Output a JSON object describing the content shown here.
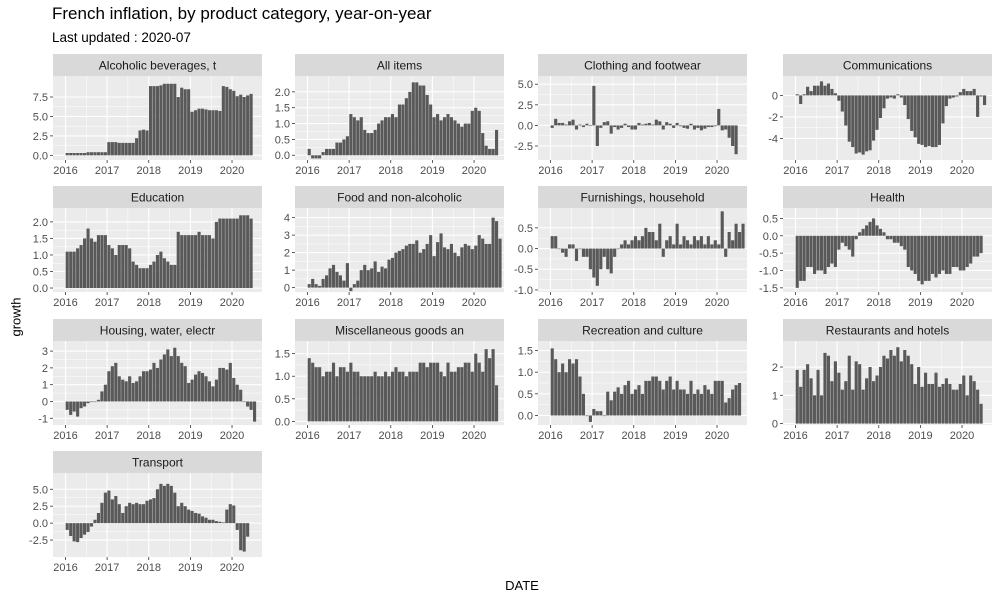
{
  "chart_data": {
    "type": "bar",
    "title": "French inflation, by product category, year-on-year",
    "subtitle": "Last updated : 2020-07",
    "xlabel": "DATE",
    "ylabel": "growth",
    "x_start": "2016-01",
    "x_end": "2020-06",
    "x_range": [
      2015.7,
      2020.72
    ],
    "x_ticks": [
      2016,
      2017,
      2018,
      2019,
      2020
    ],
    "x_tick_labels": [
      "2016",
      "2017",
      "2018",
      "2019",
      "2020"
    ],
    "colors": {
      "bar": "#595959",
      "panel": "#ebebeb",
      "strip": "#d9d9d9",
      "grid": "#ffffff",
      "axis_text": "#4d4d4d"
    },
    "facets": [
      {
        "label": "Alcoholic beverages, t",
        "ylim": [
          -0.6,
          10.2
        ],
        "y_ticks": [
          0.0,
          2.5,
          5.0,
          7.5
        ],
        "y_tick_labels": [
          "0.0",
          "2.5",
          "5.0",
          "7.5"
        ],
        "values": [
          0.3,
          0.3,
          0.3,
          0.3,
          0.3,
          0.3,
          0.4,
          0.4,
          0.4,
          0.4,
          0.4,
          0.4,
          1.7,
          1.7,
          1.7,
          1.6,
          1.6,
          1.6,
          1.6,
          1.6,
          2.2,
          3.2,
          3.3,
          3.2,
          8.9,
          8.9,
          8.9,
          9.0,
          9.2,
          9.2,
          9.2,
          9.2,
          7.5,
          8.7,
          8.5,
          8.5,
          5.6,
          5.8,
          6.0,
          6.0,
          5.9,
          5.8,
          5.8,
          5.8,
          5.7,
          8.9,
          8.8,
          8.5,
          8.3,
          7.6,
          7.8,
          7.5,
          7.7,
          7.9
        ]
      },
      {
        "label": "All items",
        "ylim": [
          -0.15,
          2.5
        ],
        "y_ticks": [
          0.0,
          0.5,
          1.0,
          1.5,
          2.0
        ],
        "y_tick_labels": [
          "0.0",
          "0.5",
          "1.0",
          "1.5",
          "2.0"
        ],
        "values": [
          0.2,
          -0.1,
          -0.1,
          -0.1,
          0.1,
          0.2,
          0.2,
          0.2,
          0.4,
          0.4,
          0.5,
          0.6,
          1.3,
          1.2,
          1.1,
          1.2,
          0.8,
          0.7,
          0.7,
          0.8,
          1.0,
          1.1,
          1.2,
          1.2,
          1.3,
          1.2,
          1.6,
          1.6,
          1.8,
          2.0,
          2.3,
          2.3,
          2.2,
          2.2,
          1.9,
          1.6,
          1.2,
          1.3,
          1.1,
          1.2,
          1.3,
          1.2,
          1.1,
          1.0,
          0.9,
          1.0,
          1.0,
          1.4,
          1.5,
          1.4,
          0.7,
          0.3,
          0.2,
          0.2,
          0.8
        ]
      },
      {
        "label": "Clothing and footwear",
        "ylim": [
          -4.2,
          6.0
        ],
        "y_ticks": [
          -2.5,
          0.0,
          2.5,
          5.0
        ],
        "y_tick_labels": [
          "-2.5",
          "0.0",
          "2.5",
          "5.0"
        ],
        "values": [
          -0.3,
          0.8,
          0.3,
          0.3,
          0.1,
          0.5,
          0.7,
          -0.5,
          0.1,
          -0.2,
          0.2,
          0.0,
          4.8,
          -2.5,
          -0.3,
          0.4,
          0.5,
          -1.0,
          -0.2,
          -0.5,
          -0.3,
          0.2,
          -0.2,
          -0.5,
          -0.5,
          0.3,
          0.1,
          0.2,
          0.3,
          0.1,
          0.7,
          0.5,
          -0.5,
          0.4,
          0.2,
          -0.3,
          0.3,
          -0.1,
          -0.3,
          -0.4,
          0.2,
          -0.5,
          -0.3,
          -0.6,
          -0.4,
          -0.2,
          -0.2,
          -0.1,
          2.0,
          -0.6,
          -0.5,
          -1.5,
          -2.5,
          -3.5
        ]
      },
      {
        "label": "Communications",
        "ylim": [
          -6.0,
          1.8
        ],
        "y_ticks": [
          -4,
          -2,
          0
        ],
        "y_tick_labels": [
          "-4",
          "-2",
          "0"
        ],
        "values": [
          0.1,
          -0.8,
          0.1,
          0.8,
          0.4,
          0.9,
          0.9,
          1.3,
          0.9,
          1.1,
          0.6,
          0.2,
          -0.5,
          -1.5,
          -2.8,
          -4.3,
          -4.8,
          -5.4,
          -5.3,
          -5.5,
          -5.2,
          -5.1,
          -4.2,
          -3.2,
          -2.1,
          -1.2,
          -0.3,
          -0.2,
          -0.3,
          0.1,
          -0.2,
          -0.9,
          -2.2,
          -3.3,
          -3.9,
          -4.5,
          -4.6,
          -4.8,
          -4.7,
          -4.8,
          -4.8,
          -4.6,
          -2.6,
          -1.0,
          -0.3,
          -0.2,
          -0.1,
          0.3,
          0.6,
          0.4,
          0.4,
          0.6,
          -2.0,
          -0.1,
          -0.9
        ]
      },
      {
        "label": "Education",
        "ylim": [
          -0.12,
          2.42
        ],
        "y_ticks": [
          0.0,
          0.5,
          1.0,
          1.5,
          2.0
        ],
        "y_tick_labels": [
          "0.0",
          "0.5",
          "1.0",
          "1.5",
          "2.0"
        ],
        "values": [
          1.1,
          1.1,
          1.1,
          1.2,
          1.3,
          1.5,
          1.8,
          1.5,
          1.4,
          1.6,
          1.6,
          1.6,
          1.3,
          1.2,
          1.0,
          1.3,
          1.3,
          1.3,
          1.2,
          0.8,
          0.7,
          0.6,
          0.6,
          0.6,
          0.7,
          0.8,
          1.0,
          1.1,
          0.9,
          0.8,
          0.7,
          0.7,
          1.7,
          1.6,
          1.6,
          1.6,
          1.6,
          1.6,
          1.7,
          1.6,
          1.6,
          1.6,
          1.5,
          2.0,
          2.1,
          2.1,
          2.1,
          2.1,
          2.1,
          2.1,
          2.2,
          2.2,
          2.2,
          2.1
        ]
      },
      {
        "label": "Food and non-alcoholic",
        "ylim": [
          -0.25,
          4.55
        ],
        "y_ticks": [
          0,
          1,
          2,
          3,
          4
        ],
        "y_tick_labels": [
          "0",
          "1",
          "2",
          "3",
          "4"
        ],
        "values": [
          0.2,
          0.5,
          0.2,
          0.1,
          0.5,
          0.7,
          1.1,
          1.3,
          0.9,
          0.7,
          0.4,
          1.4,
          -0.2,
          0.2,
          0.4,
          1.0,
          1.3,
          1.0,
          1.1,
          1.5,
          0.9,
          1.2,
          1.1,
          1.6,
          1.7,
          2.0,
          2.1,
          2.2,
          2.4,
          2.5,
          2.5,
          2.7,
          2.0,
          2.2,
          2.5,
          3.0,
          1.8,
          2.6,
          3.1,
          2.3,
          2.2,
          2.5,
          2.0,
          1.8,
          2.3,
          2.5,
          2.4,
          2.2,
          2.4,
          3.0,
          2.8,
          2.5,
          2.5,
          4.0,
          3.8,
          2.8
        ]
      },
      {
        "label": "Furnishings, household",
        "ylim": [
          -1.05,
          0.98
        ],
        "y_ticks": [
          -1.0,
          -0.5,
          0.0,
          0.5
        ],
        "y_tick_labels": [
          "-1.0",
          "-0.5",
          "0.0",
          "0.5"
        ],
        "values": [
          0.3,
          0.3,
          0.0,
          -0.1,
          -0.2,
          0.1,
          0.1,
          -0.3,
          0.0,
          -0.2,
          -0.2,
          -0.5,
          -0.7,
          -0.9,
          -0.5,
          -0.2,
          -0.5,
          -0.6,
          -0.2,
          0.0,
          0.1,
          0.2,
          0.1,
          0.2,
          0.3,
          0.2,
          0.3,
          0.5,
          0.4,
          0.4,
          0.2,
          0.6,
          -0.2,
          0.2,
          0.3,
          0.1,
          0.6,
          0.1,
          0.3,
          0.2,
          0.1,
          0.3,
          0.2,
          0.3,
          0.1,
          0.3,
          0.1,
          0.2,
          0.1,
          0.9,
          -0.2,
          0.4,
          0.2,
          0.6,
          0.4,
          0.6
        ]
      },
      {
        "label": "Health",
        "ylim": [
          -1.62,
          0.8
        ],
        "y_ticks": [
          -1.5,
          -1.0,
          -0.5,
          0.0,
          0.5
        ],
        "y_tick_labels": [
          "-1.5",
          "-1.0",
          "-0.5",
          "0.0",
          "0.5"
        ],
        "values": [
          -1.5,
          -1.3,
          -1.3,
          -0.9,
          -0.9,
          -1.1,
          -1.0,
          -1.0,
          -1.1,
          -0.9,
          -0.8,
          -0.9,
          -0.4,
          -0.2,
          -0.3,
          -0.4,
          -0.6,
          -0.1,
          0.1,
          0.2,
          0.3,
          0.4,
          0.5,
          0.3,
          0.2,
          0.1,
          -0.1,
          -0.1,
          -0.2,
          -0.2,
          -0.3,
          -0.4,
          -0.9,
          -1.0,
          -1.1,
          -1.3,
          -1.4,
          -1.3,
          -1.3,
          -1.1,
          -1.2,
          -1.1,
          -1.0,
          -1.1,
          -1.1,
          -0.9,
          -0.9,
          -1.0,
          -1.0,
          -0.9,
          -0.8,
          -0.6,
          -0.6,
          -0.5
        ]
      },
      {
        "label": "Housing, water, electr",
        "ylim": [
          -1.4,
          3.6
        ],
        "y_ticks": [
          -1,
          0,
          1,
          2,
          3
        ],
        "y_tick_labels": [
          "-1",
          "0",
          "1",
          "2",
          "3"
        ],
        "values": [
          -0.5,
          -0.8,
          -0.6,
          -0.9,
          -0.4,
          -0.3,
          -0.1,
          0.0,
          0.0,
          0.1,
          0.6,
          1.0,
          1.8,
          2.1,
          2.3,
          1.5,
          1.3,
          1.2,
          1.5,
          1.1,
          1.2,
          1.5,
          1.8,
          1.8,
          1.9,
          2.3,
          2.0,
          2.5,
          2.8,
          3.1,
          2.7,
          3.2,
          2.7,
          2.3,
          2.1,
          1.1,
          1.3,
          1.6,
          1.8,
          1.7,
          1.5,
          1.2,
          0.9,
          1.3,
          2.0,
          2.0,
          1.9,
          2.3,
          1.4,
          1.0,
          0.7,
          0.0,
          -0.3,
          -0.5,
          -1.2
        ]
      },
      {
        "label": "Miscellaneous goods an",
        "ylim": [
          -0.08,
          1.78
        ],
        "y_ticks": [
          0.0,
          0.5,
          1.0,
          1.5
        ],
        "y_tick_labels": [
          "0.0",
          "0.5",
          "1.0",
          "1.5"
        ],
        "values": [
          1.4,
          1.3,
          1.2,
          1.2,
          1.0,
          1.1,
          1.1,
          1.3,
          1.0,
          1.2,
          1.2,
          1.1,
          1.3,
          1.1,
          1.1,
          1.0,
          1.0,
          1.0,
          1.0,
          1.1,
          1.0,
          1.0,
          1.1,
          1.0,
          1.1,
          1.2,
          1.1,
          1.1,
          1.0,
          1.1,
          1.1,
          1.1,
          1.3,
          1.3,
          1.2,
          1.3,
          1.3,
          1.3,
          1.1,
          1.0,
          1.3,
          1.1,
          1.1,
          1.2,
          1.2,
          1.3,
          1.3,
          1.1,
          1.5,
          1.3,
          1.1,
          1.6,
          1.4,
          1.6,
          0.8
        ]
      },
      {
        "label": "Recreation and culture",
        "ylim": [
          -0.22,
          1.72
        ],
        "y_ticks": [
          0.0,
          0.5,
          1.0,
          1.5
        ],
        "y_tick_labels": [
          "0.0",
          "0.5",
          "1.0",
          "1.5"
        ],
        "values": [
          1.55,
          1.3,
          1.0,
          1.2,
          1.0,
          1.3,
          1.2,
          1.3,
          0.9,
          0.5,
          0.0,
          -0.15,
          0.15,
          0.1,
          0.1,
          0.0,
          0.55,
          0.35,
          0.55,
          0.65,
          0.5,
          0.7,
          0.8,
          0.5,
          0.6,
          0.7,
          0.5,
          0.8,
          0.8,
          0.9,
          0.9,
          0.8,
          0.6,
          0.8,
          0.9,
          0.6,
          0.8,
          0.6,
          0.6,
          0.5,
          0.8,
          0.5,
          0.6,
          0.5,
          0.7,
          0.6,
          0.5,
          0.8,
          0.8,
          0.8,
          0.3,
          0.4,
          0.6,
          0.7,
          0.75
        ]
      },
      {
        "label": "Restaurants and hotels",
        "ylim": [
          -0.05,
          2.92
        ],
        "y_ticks": [
          0,
          1,
          2
        ],
        "y_tick_labels": [
          "0",
          "1",
          "2"
        ],
        "values": [
          1.9,
          1.3,
          1.9,
          2.1,
          1.6,
          1.0,
          1.9,
          1.0,
          2.5,
          2.4,
          1.5,
          2.2,
          1.8,
          1.2,
          1.5,
          2.4,
          1.2,
          2.2,
          2.1,
          1.2,
          1.6,
          2.0,
          1.5,
          1.7,
          2.0,
          2.4,
          2.3,
          2.6,
          2.4,
          2.7,
          2.2,
          2.6,
          2.4,
          2.1,
          1.4,
          2.0,
          1.3,
          1.8,
          1.4,
          1.4,
          1.8,
          1.3,
          1.4,
          1.6,
          1.4,
          1.2,
          1.2,
          1.4,
          1.7,
          1.0,
          1.7,
          1.5,
          1.2,
          0.7
        ]
      },
      {
        "label": "Transport",
        "ylim": [
          -5.0,
          7.4
        ],
        "y_ticks": [
          -2.5,
          0.0,
          2.5,
          5.0
        ],
        "y_tick_labels": [
          "-2.5",
          "0.0",
          "2.5",
          "5.0"
        ],
        "values": [
          -1.0,
          -1.9,
          -2.7,
          -2.8,
          -2.2,
          -1.7,
          -1.3,
          -0.5,
          0.5,
          1.5,
          3.0,
          4.5,
          4.8,
          3.5,
          4.0,
          2.8,
          1.5,
          2.5,
          3.0,
          2.8,
          3.0,
          2.8,
          2.8,
          3.3,
          3.5,
          3.7,
          5.0,
          5.8,
          5.5,
          5.8,
          5.5,
          4.5,
          2.5,
          3.0,
          2.5,
          2.0,
          1.8,
          1.5,
          1.4,
          1.0,
          0.8,
          0.5,
          0.5,
          0.3,
          0.2,
          0.1,
          2.0,
          2.8,
          2.6,
          -1.0,
          -4.0,
          -4.2,
          -2.0
        ]
      }
    ]
  }
}
